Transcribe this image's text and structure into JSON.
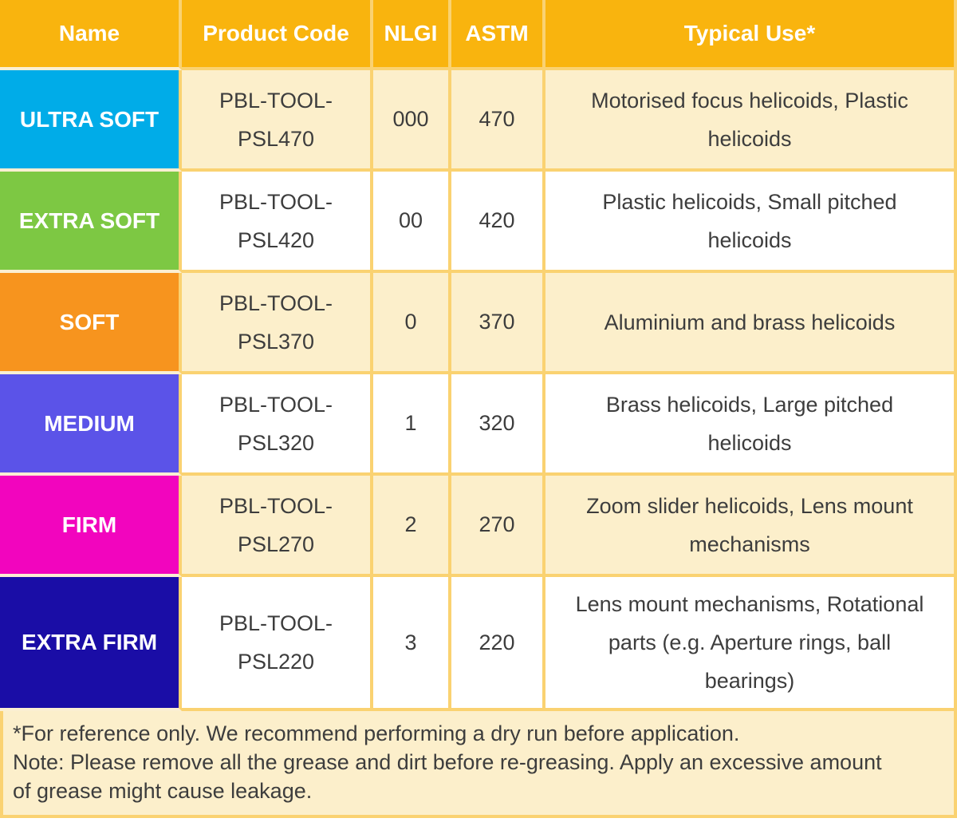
{
  "table": {
    "columns": [
      "Name",
      "Product Code",
      "NLGI",
      "ASTM",
      "Typical Use*"
    ],
    "rows": [
      {
        "name": "ULTRA SOFT",
        "color": "#00ACE8",
        "product_code": "PBL-TOOL-PSL470",
        "nlgi": "000",
        "astm": "470",
        "typical_use": "Motorised focus helicoids, Plastic helicoids"
      },
      {
        "name": "EXTRA SOFT",
        "color": "#7DC843",
        "product_code": "PBL-TOOL-PSL420",
        "nlgi": "00",
        "astm": "420",
        "typical_use": "Plastic helicoids, Small pitched helicoids"
      },
      {
        "name": "SOFT",
        "color": "#F7941E",
        "product_code": "PBL-TOOL-PSL370",
        "nlgi": "0",
        "astm": "370",
        "typical_use": "Aluminium and brass helicoids"
      },
      {
        "name": "MEDIUM",
        "color": "#5B53E8",
        "product_code": "PBL-TOOL-PSL320",
        "nlgi": "1",
        "astm": "320",
        "typical_use": "Brass helicoids, Large pitched helicoids"
      },
      {
        "name": "FIRM",
        "color": "#F205BE",
        "product_code": "PBL-TOOL-PSL270",
        "nlgi": "2",
        "astm": "270",
        "typical_use": "Zoom slider helicoids, Lens mount mechanisms"
      },
      {
        "name": "EXTRA FIRM",
        "color": "#1A0DA6",
        "product_code": "PBL-TOOL-PSL220",
        "nlgi": "3",
        "astm": "220",
        "typical_use": "Lens mount mechanisms, Rotational parts (e.g. Aperture rings, ball bearings)"
      }
    ]
  },
  "footnote": {
    "line1": "*For reference only. We recommend performing a dry run before application.",
    "line2": "Note: Please remove all the grease and dirt before re-greasing. Apply an excessive amount of grease might cause leakage."
  },
  "colors": {
    "header_bg": "#F9B40E",
    "header_text": "#FFFFFF",
    "border": "#FAD271",
    "row_cream": "#FCEFCB",
    "row_white": "#FFFFFF",
    "body_text": "#3D3D3D",
    "ultra_soft": "#00ACE8",
    "extra_soft": "#7DC843",
    "soft": "#F7941E",
    "medium": "#5B53E8",
    "firm": "#F205BE",
    "extra_firm": "#1A0DA6"
  }
}
